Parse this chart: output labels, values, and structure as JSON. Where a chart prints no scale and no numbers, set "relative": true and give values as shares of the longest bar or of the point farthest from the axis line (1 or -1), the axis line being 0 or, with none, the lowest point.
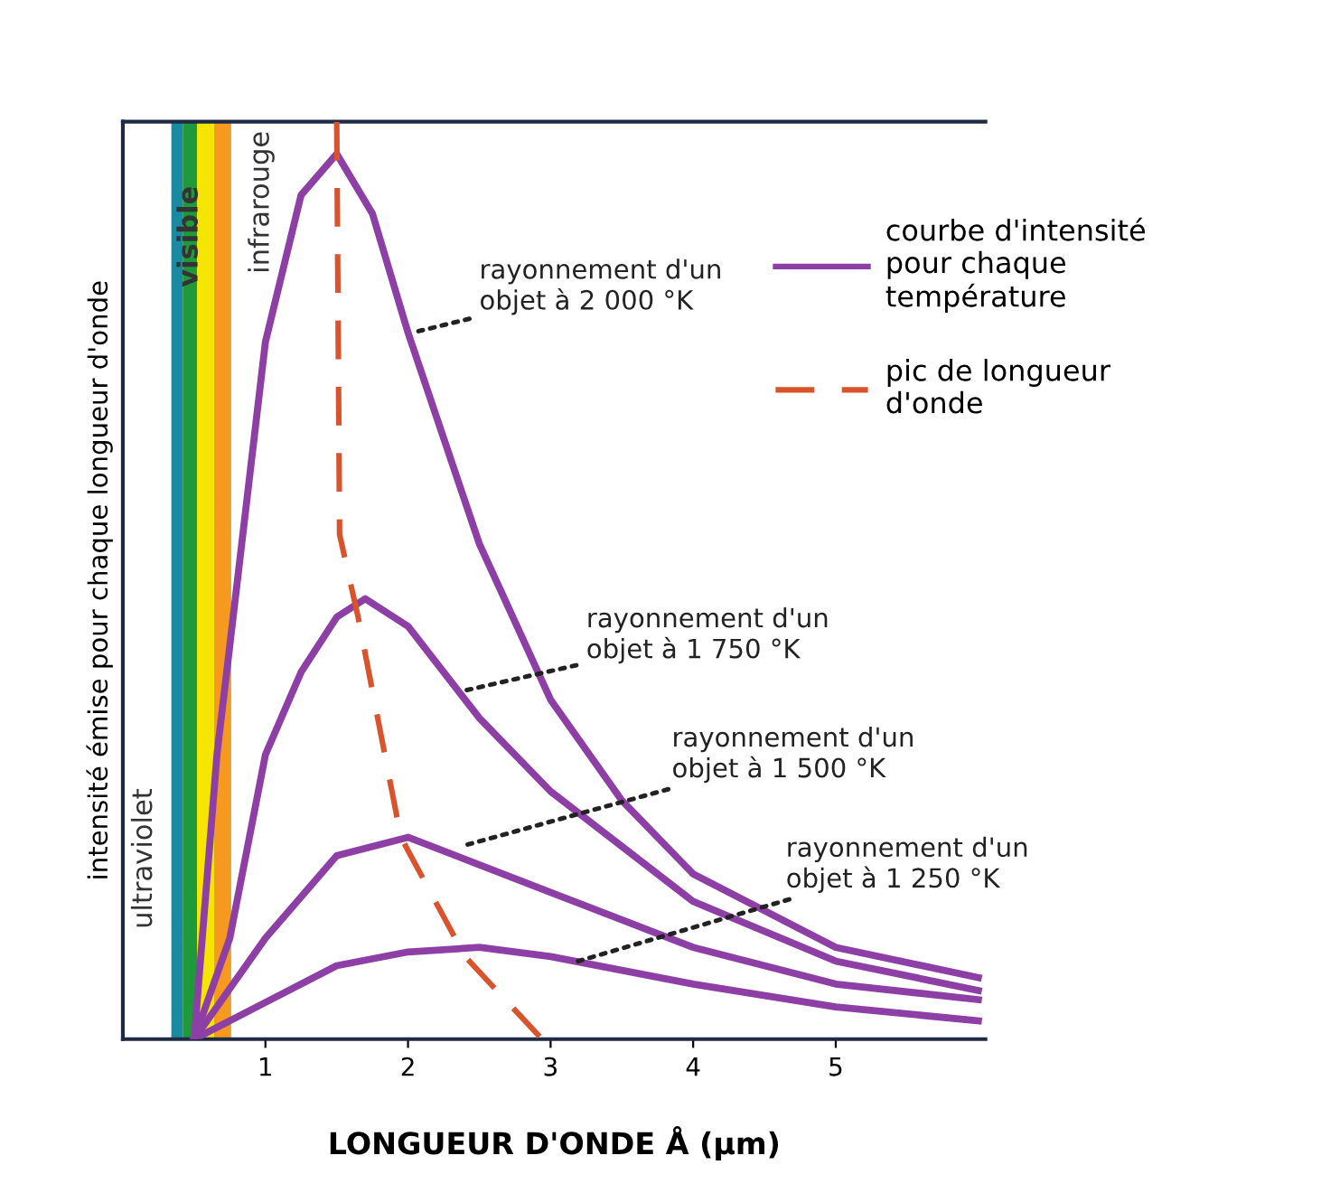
{
  "chart_data": {
    "type": "line",
    "relative": true,
    "xlabel": "LONGUEUR D'ONDE Å (µm)",
    "ylabel": "intensité émise pour chaque longueur d'onde",
    "xlim": [
      0,
      6.05
    ],
    "xticks": [
      1,
      2,
      3,
      4,
      5
    ],
    "legend": "right",
    "tick_labels": "x",
    "marker": "none",
    "series": [
      {
        "name": "courbe d'intensité\npour chaque\ntempérature",
        "color": "#8e3fa6",
        "line_style": "solid",
        "x": [
          0.5,
          0.66,
          1.0,
          1.25,
          1.5,
          1.75,
          2.0,
          2.5,
          3.0,
          3.5,
          4.0,
          5.0,
          6.0
        ],
        "values": [
          0,
          0.31,
          0.76,
          0.92,
          0.965,
          0.9,
          0.77,
          0.54,
          0.37,
          0.26,
          0.18,
          0.1,
          0.067
        ]
      },
      {
        "color": "#8e3fa6",
        "line_style": "solid",
        "x": [
          0.5,
          0.75,
          1.0,
          1.25,
          1.5,
          1.7,
          2.0,
          2.5,
          3.0,
          4.0,
          5.0,
          6.0
        ],
        "values": [
          0,
          0.11,
          0.31,
          0.4,
          0.46,
          0.48,
          0.45,
          0.35,
          0.27,
          0.15,
          0.085,
          0.053
        ]
      },
      {
        "color": "#8e3fa6",
        "line_style": "solid",
        "x": [
          0.5,
          1.0,
          1.5,
          2.0,
          2.5,
          3.0,
          4.0,
          5.0,
          6.0
        ],
        "values": [
          0,
          0.11,
          0.2,
          0.22,
          0.19,
          0.16,
          0.1,
          0.06,
          0.043
        ]
      },
      {
        "color": "#8e3fa6",
        "line_style": "solid",
        "x": [
          0.5,
          1.0,
          1.5,
          2.0,
          2.5,
          3.0,
          4.0,
          5.0,
          6.0
        ],
        "values": [
          0,
          0.04,
          0.08,
          0.095,
          0.1,
          0.09,
          0.06,
          0.035,
          0.02
        ]
      },
      {
        "name": "pic de longueur\nd'onde",
        "color": "#d9532c",
        "line_style": "dashed",
        "x": [
          1.5,
          1.52,
          1.65,
          1.95,
          2.4,
          2.94
        ],
        "values": [
          1.0,
          0.55,
          0.46,
          0.22,
          0.09,
          0
        ]
      }
    ],
    "bands": [
      {
        "axis": "x",
        "from": 0.34,
        "to": 0.42,
        "color": "#1a8aa0"
      },
      {
        "axis": "x",
        "from": 0.42,
        "to": 0.52,
        "color": "#1f9a3a",
        "label": "visible"
      },
      {
        "axis": "x",
        "from": 0.52,
        "to": 0.64,
        "color": "#f5e500"
      },
      {
        "axis": "x",
        "from": 0.64,
        "to": 0.76,
        "color": "#f59a1f"
      }
    ],
    "annotations": [
      "ultraviolet",
      "infrarouge",
      {
        "text": "rayonnement d'un\nobjet à 2 000 °K",
        "x": 2.03,
        "y": 0.77
      },
      {
        "text": "rayonnement d'un\nobjet à 1 750 °K",
        "x": 2.4,
        "y": 0.38
      },
      {
        "text": "rayonnement d'un\nobjet à 1 500 °K",
        "x": 2.37,
        "y": 0.21
      },
      {
        "text": "rayonnement d'un\nobjet à 1 250 °K",
        "x": 3.15,
        "y": 0.083
      }
    ]
  }
}
